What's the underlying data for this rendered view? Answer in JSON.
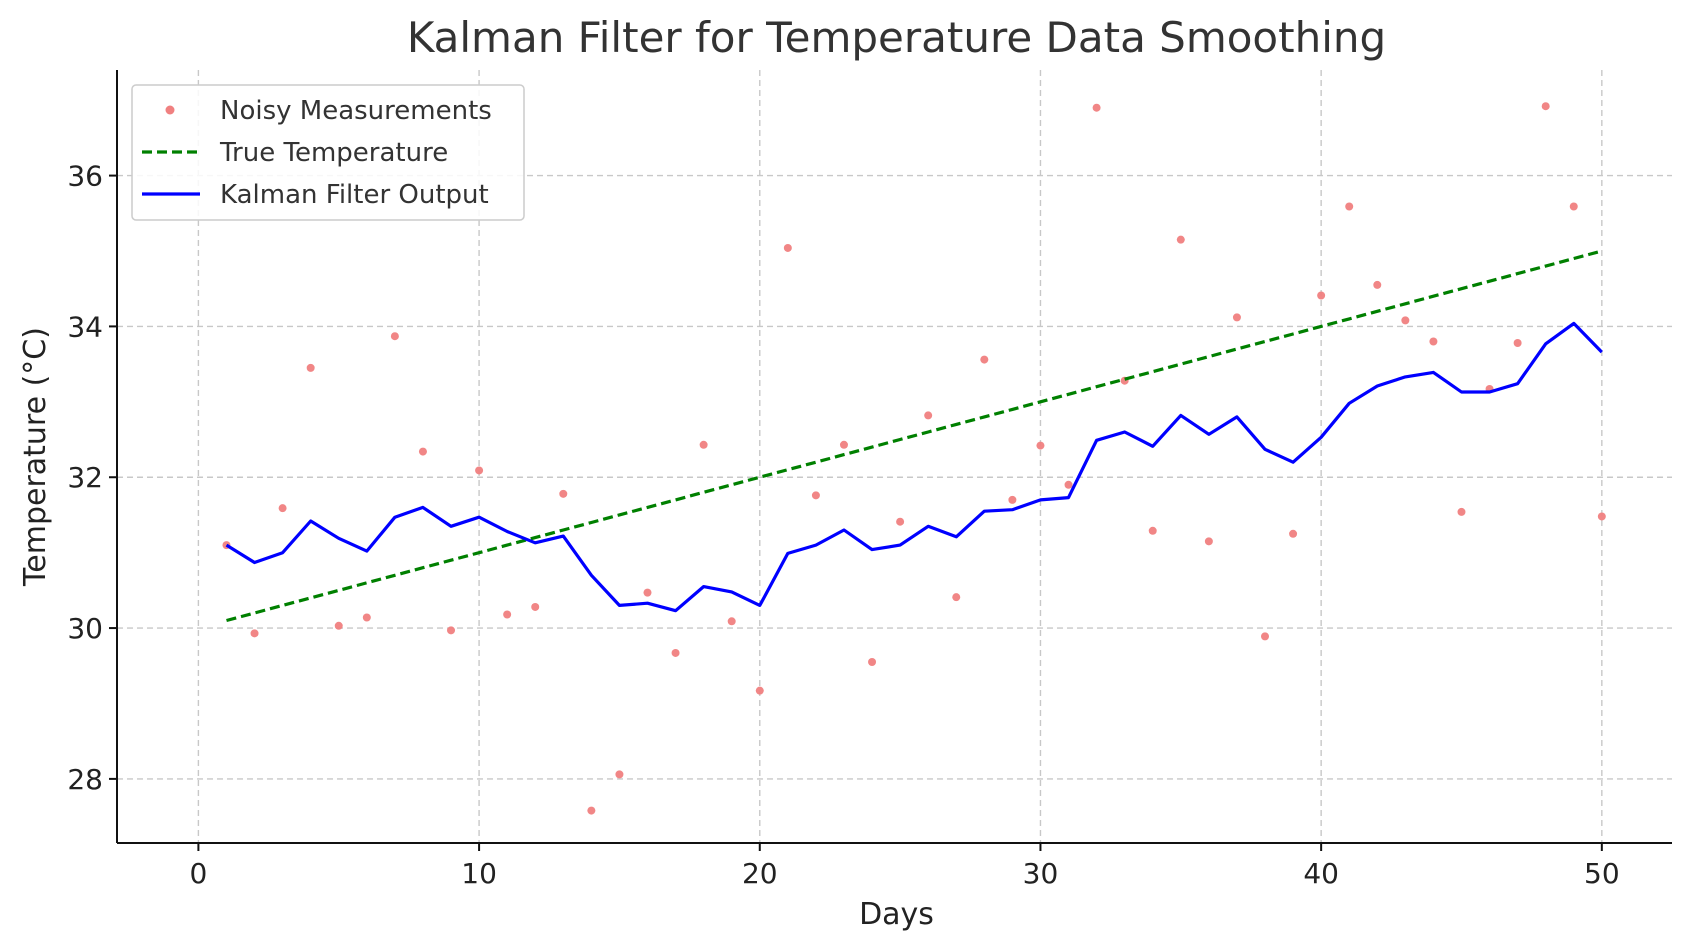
{
  "chart_data": {
    "type": "line",
    "title": "Kalman Filter for Temperature Data Smoothing",
    "xlabel": "Days",
    "ylabel": "Temperature (°C)",
    "xlim": [
      -2.9,
      52.5
    ],
    "ylim": [
      27.15,
      37.4
    ],
    "xticks": [
      0,
      10,
      20,
      30,
      40,
      50
    ],
    "yticks": [
      28,
      30,
      32,
      34,
      36
    ],
    "grid": true,
    "legend_position": "top-left",
    "x": [
      1,
      2,
      3,
      4,
      5,
      6,
      7,
      8,
      9,
      10,
      11,
      12,
      13,
      14,
      15,
      16,
      17,
      18,
      19,
      20,
      21,
      22,
      23,
      24,
      25,
      26,
      27,
      28,
      29,
      30,
      31,
      32,
      33,
      34,
      35,
      36,
      37,
      38,
      39,
      40,
      41,
      42,
      43,
      44,
      45,
      46,
      47,
      48,
      49,
      50
    ],
    "series": [
      {
        "name": "Noisy Measurements",
        "style": "scatter",
        "color": "#f08080",
        "values": [
          31.1,
          29.93,
          31.59,
          33.45,
          30.03,
          30.14,
          33.87,
          32.34,
          29.97,
          32.09,
          30.18,
          30.28,
          31.78,
          27.58,
          28.06,
          30.47,
          29.67,
          32.43,
          30.09,
          29.17,
          35.04,
          31.76,
          32.43,
          29.55,
          31.41,
          32.82,
          30.41,
          33.56,
          31.7,
          32.42,
          31.9,
          36.9,
          33.28,
          31.29,
          35.15,
          31.15,
          34.12,
          29.89,
          31.25,
          34.41,
          35.59,
          34.55,
          34.08,
          33.8,
          31.54,
          33.17,
          33.78,
          36.92,
          35.59,
          31.48
        ]
      },
      {
        "name": "True Temperature",
        "style": "dashed",
        "color": "#008000",
        "values": [
          30.1,
          30.2,
          30.3,
          30.4,
          30.5,
          30.6,
          30.7,
          30.8,
          30.9,
          31.0,
          31.1,
          31.2,
          31.3,
          31.4,
          31.5,
          31.6,
          31.7,
          31.8,
          31.9,
          32.0,
          32.1,
          32.2,
          32.3,
          32.4,
          32.5,
          32.6,
          32.7,
          32.8,
          32.9,
          33.0,
          33.1,
          33.2,
          33.3,
          33.4,
          33.5,
          33.6,
          33.7,
          33.8,
          33.9,
          34.0,
          34.1,
          34.2,
          34.3,
          34.4,
          34.5,
          34.6,
          34.7,
          34.8,
          34.9,
          35.0
        ]
      },
      {
        "name": "Kalman Filter Output",
        "style": "solid",
        "color": "#0000ff",
        "values": [
          31.1,
          30.87,
          31.0,
          31.42,
          31.19,
          31.02,
          31.47,
          31.6,
          31.35,
          31.47,
          31.28,
          31.13,
          31.22,
          30.7,
          30.3,
          30.33,
          30.23,
          30.55,
          30.48,
          30.3,
          30.99,
          31.1,
          31.3,
          31.04,
          31.1,
          31.35,
          31.21,
          31.55,
          31.57,
          31.7,
          31.73,
          32.49,
          32.6,
          32.41,
          32.82,
          32.57,
          32.8,
          32.37,
          32.2,
          32.53,
          32.98,
          33.21,
          33.33,
          33.39,
          33.13,
          33.13,
          33.24,
          33.77,
          34.04,
          33.66
        ]
      }
    ]
  }
}
